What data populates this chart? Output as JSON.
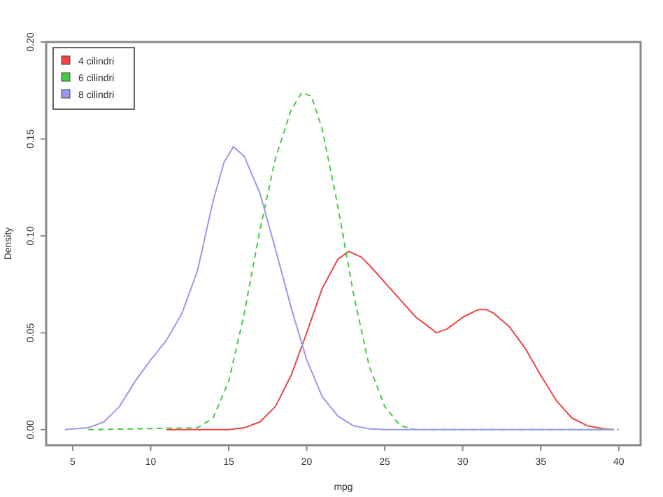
{
  "chart_data": {
    "type": "line",
    "xlabel": "mpg",
    "ylabel": "Density",
    "xlim": [
      3.3,
      41.4
    ],
    "ylim": [
      -0.008,
      0.2
    ],
    "xticks": [
      5,
      10,
      15,
      20,
      25,
      30,
      35,
      40
    ],
    "yticks": [
      {
        "value": 0,
        "label": "0.00"
      },
      {
        "value": 0.05,
        "label": "0.05"
      },
      {
        "value": 0.1,
        "label": "0.10"
      },
      {
        "value": 0.15,
        "label": "0.15"
      },
      {
        "value": 0.2,
        "label": "0.20"
      }
    ],
    "grid": false,
    "legend": "top left",
    "series": [
      {
        "name": "4 cilindri",
        "color": "#ee4444",
        "line_style": "solid",
        "x": [
          11,
          15,
          16,
          17,
          18,
          19,
          20,
          21,
          22,
          22.7,
          23.5,
          24,
          25,
          26,
          27,
          28,
          28.3,
          29,
          30,
          31,
          31.5,
          32,
          33,
          34,
          35,
          36,
          37,
          38,
          39,
          39.7
        ],
        "values": [
          0,
          0,
          0.001,
          0.004,
          0.012,
          0.028,
          0.05,
          0.073,
          0.088,
          0.092,
          0.089,
          0.085,
          0.076,
          0.067,
          0.058,
          0.052,
          0.05,
          0.052,
          0.058,
          0.062,
          0.062,
          0.06,
          0.053,
          0.042,
          0.028,
          0.015,
          0.006,
          0.002,
          0.0005,
          0
        ]
      },
      {
        "name": "6 cilindri",
        "color": "#44cc44",
        "line_style": "dashed",
        "x": [
          6,
          13,
          14,
          15,
          16,
          17,
          18,
          19,
          19.7,
          20.3,
          21,
          22,
          23,
          24,
          25,
          26,
          27,
          40
        ],
        "values": [
          0,
          0.001,
          0.006,
          0.025,
          0.06,
          0.103,
          0.14,
          0.165,
          0.174,
          0.172,
          0.155,
          0.115,
          0.07,
          0.033,
          0.012,
          0.002,
          0,
          0
        ]
      },
      {
        "name": "8 cilindri",
        "color": "#9999ee",
        "line_style": "solid",
        "x": [
          4.5,
          6,
          7,
          8,
          9,
          10,
          11,
          12,
          13,
          14,
          14.7,
          15.3,
          16,
          17,
          18,
          19,
          20,
          21,
          22,
          23,
          24,
          25,
          26,
          39.7
        ],
        "values": [
          0,
          0.001,
          0.004,
          0.012,
          0.025,
          0.036,
          0.046,
          0.06,
          0.082,
          0.118,
          0.138,
          0.146,
          0.141,
          0.122,
          0.093,
          0.063,
          0.036,
          0.017,
          0.007,
          0.002,
          0.0005,
          0,
          0,
          0
        ]
      }
    ]
  }
}
